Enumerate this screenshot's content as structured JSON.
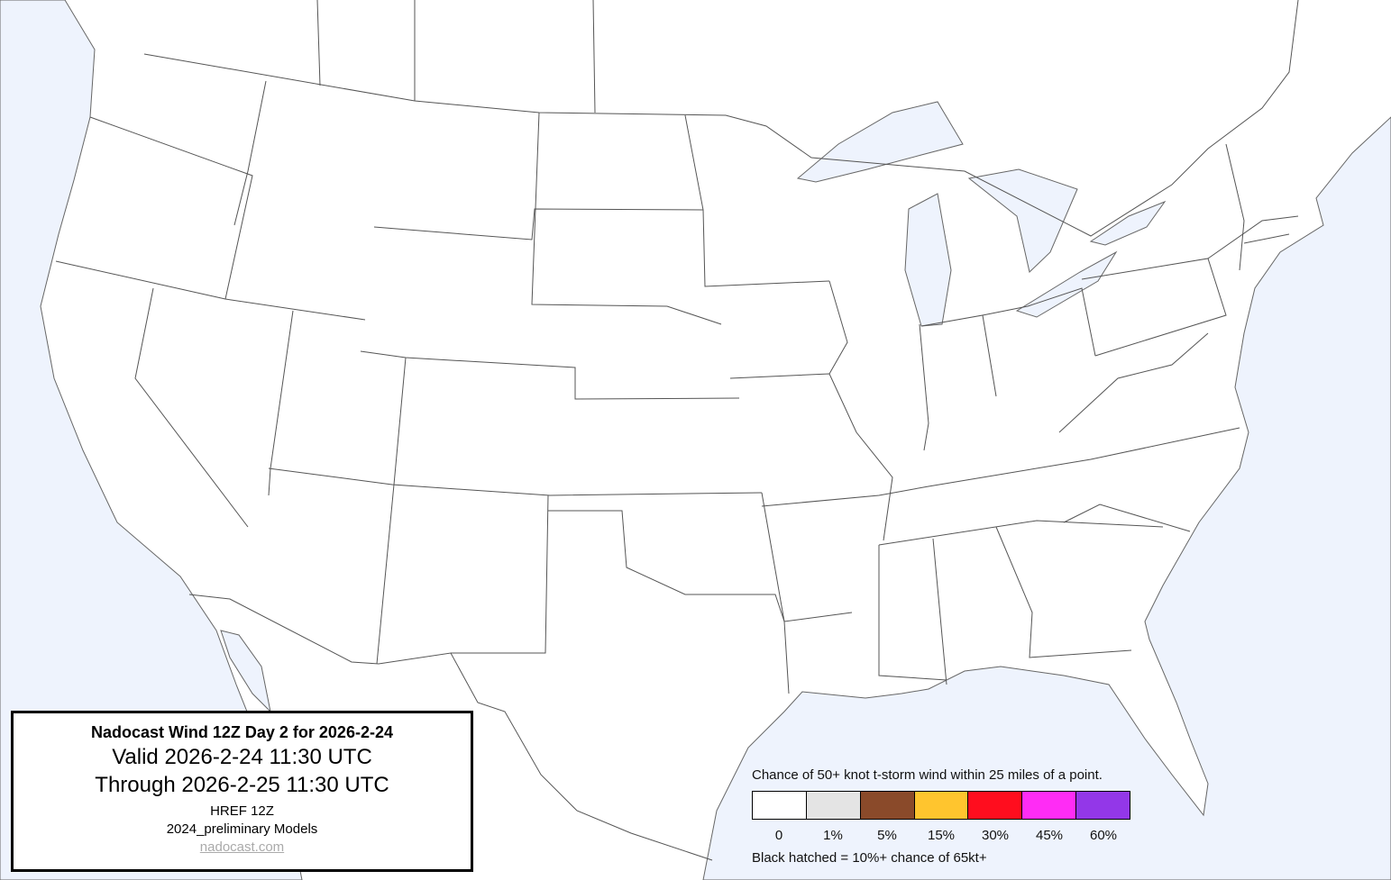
{
  "map": {
    "water_color": "#eef3fd",
    "land_color": "#ffffff",
    "border_color": "#555555"
  },
  "title_box": {
    "title": "Nadocast Wind 12Z Day 2 for 2026-2-24",
    "valid": "Valid 2026-2-24 11:30 UTC",
    "through": "Through 2026-2-25 11:30 UTC",
    "model": "HREF 12Z",
    "models": "2024_preliminary Models",
    "link": "nadocast.com"
  },
  "legend": {
    "title": "Chance of 50+ knot t-storm wind within 25 miles of a point.",
    "bins": [
      {
        "label": "0",
        "color": "#ffffff"
      },
      {
        "label": "1%",
        "color": "#e4e4e4"
      },
      {
        "label": "5%",
        "color": "#8a4a2a"
      },
      {
        "label": "15%",
        "color": "#ffc52e"
      },
      {
        "label": "30%",
        "color": "#ff0d1e"
      },
      {
        "label": "45%",
        "color": "#ff2cf5"
      },
      {
        "label": "60%",
        "color": "#9337e8"
      }
    ],
    "note": "Black hatched = 10%+ chance of 65kt+"
  }
}
